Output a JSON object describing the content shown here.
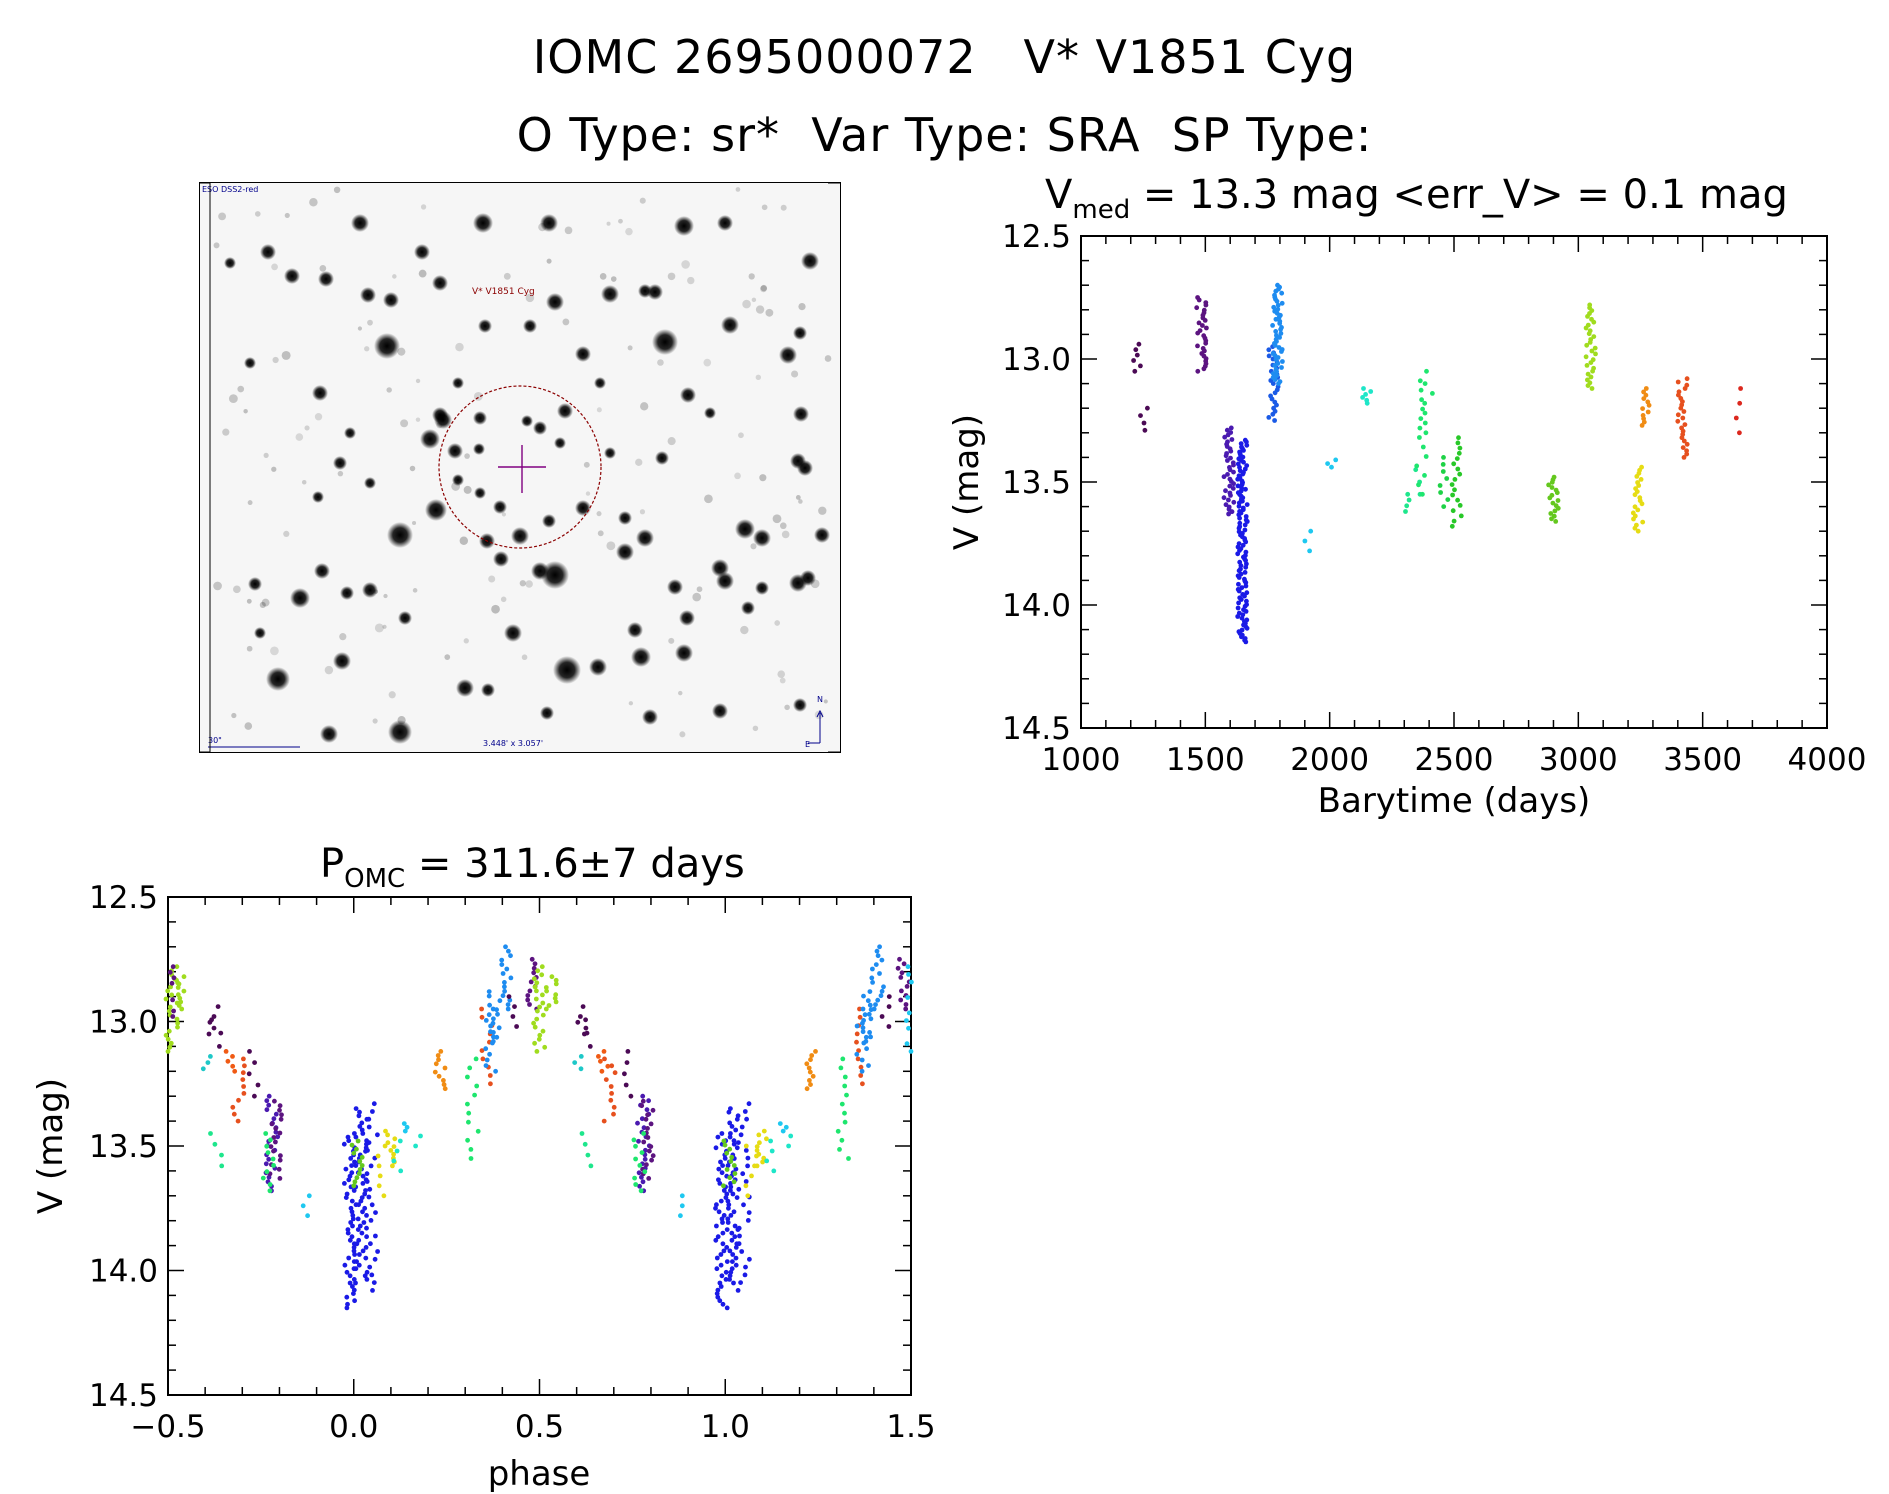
{
  "header": {
    "line1": "IOMC 2695000072   V* V1851 Cyg",
    "line2": "O Type: sr*  Var Type: SRA  SP Type:"
  },
  "image_panel": {
    "survey_label": "ESO DSS2-red",
    "object_label": "V* V1851 Cyg",
    "scale_label": "30\"",
    "fov_label": "3.448' x 3.057'",
    "north_label": "N",
    "east_label": "E",
    "colors": {
      "marker": "#8b0000",
      "cross": "#800080",
      "annotation": "#00008b"
    }
  },
  "chart_data": [
    {
      "id": "lightcurve",
      "type": "scatter",
      "title_main": "V",
      "title_sub": "med",
      "title_rest": " = 13.3 mag <err_V> = 0.1 mag",
      "xlabel": "Barytime (days)",
      "ylabel": "V (mag)",
      "xlim": [
        1000,
        4000
      ],
      "ylim": [
        12.5,
        14.5
      ],
      "y_inverted": true,
      "xticks": [
        1000,
        1500,
        2000,
        2500,
        3000,
        3500,
        4000
      ],
      "yticks": [
        "12.5",
        "13.0",
        "13.5",
        "14.0",
        "14.5"
      ],
      "groups": [
        {
          "x": 1225,
          "ymin": 12.94,
          "ymax": 13.05,
          "n": 6,
          "color": "#4b0a55"
        },
        {
          "x": 1250,
          "ymin": 13.2,
          "ymax": 13.29,
          "n": 4,
          "color": "#4b0a55"
        },
        {
          "x": 1485,
          "ymin": 12.75,
          "ymax": 13.05,
          "n": 30,
          "color": "#5c1480"
        },
        {
          "x": 1595,
          "ymin": 13.28,
          "ymax": 13.63,
          "n": 38,
          "color": "#4a1ab0"
        },
        {
          "x": 1650,
          "ymin": 13.33,
          "ymax": 14.15,
          "n": 120,
          "color": "#1a1ae6"
        },
        {
          "x": 1775,
          "ymin": 12.95,
          "ymax": 13.25,
          "n": 25,
          "color": "#1a5ae6"
        },
        {
          "x": 1790,
          "ymin": 12.7,
          "ymax": 13.1,
          "n": 50,
          "color": "#1e8cf0"
        },
        {
          "x": 1920,
          "ymin": 13.7,
          "ymax": 13.78,
          "n": 3,
          "color": "#1ec8f0"
        },
        {
          "x": 2010,
          "ymin": 13.41,
          "ymax": 13.44,
          "n": 3,
          "color": "#1ec8f0"
        },
        {
          "x": 2150,
          "ymin": 13.12,
          "ymax": 13.18,
          "n": 6,
          "color": "#1ee6c8"
        },
        {
          "x": 2320,
          "ymin": 13.55,
          "ymax": 13.62,
          "n": 4,
          "color": "#1ee68c"
        },
        {
          "x": 2350,
          "ymin": 13.45,
          "ymax": 13.55,
          "n": 3,
          "color": "#1ee68c"
        },
        {
          "x": 2370,
          "ymin": 13.05,
          "ymax": 13.55,
          "n": 14,
          "color": "#1ee66e"
        },
        {
          "x": 2395,
          "ymin": 13.1,
          "ymax": 13.3,
          "n": 6,
          "color": "#1ee66e"
        },
        {
          "x": 2460,
          "ymin": 13.4,
          "ymax": 13.6,
          "n": 8,
          "color": "#1ed246"
        },
        {
          "x": 2510,
          "ymin": 13.32,
          "ymax": 13.68,
          "n": 18,
          "color": "#28c828"
        },
        {
          "x": 2900,
          "ymin": 13.48,
          "ymax": 13.66,
          "n": 18,
          "color": "#64c81e"
        },
        {
          "x": 3050,
          "ymin": 12.78,
          "ymax": 13.12,
          "n": 30,
          "color": "#a0dc1e"
        },
        {
          "x": 3240,
          "ymin": 13.44,
          "ymax": 13.7,
          "n": 22,
          "color": "#e6dc14"
        },
        {
          "x": 3270,
          "ymin": 13.12,
          "ymax": 13.27,
          "n": 12,
          "color": "#f08c14"
        },
        {
          "x": 3420,
          "ymin": 13.08,
          "ymax": 13.4,
          "n": 25,
          "color": "#e6501e"
        },
        {
          "x": 3640,
          "ymin": 13.12,
          "ymax": 13.3,
          "n": 4,
          "color": "#dc281e"
        }
      ]
    },
    {
      "id": "phased",
      "type": "scatter",
      "title_main": "P",
      "title_sub": "OMC",
      "title_rest": " = 311.6±7 days",
      "xlabel": "phase",
      "ylabel": "V (mag)",
      "xlim": [
        -0.5,
        1.5
      ],
      "ylim": [
        12.5,
        14.5
      ],
      "y_inverted": true,
      "xticks": [
        "−0.5",
        "0.0",
        "0.5",
        "1.0",
        "1.5"
      ],
      "yticks": [
        "12.5",
        "13.0",
        "13.5",
        "14.0",
        "14.5"
      ],
      "groups": [
        {
          "x": -0.49,
          "ymin": 12.78,
          "ymax": 13.12,
          "n": 22,
          "color": "#a0dc1e"
        },
        {
          "x": -0.47,
          "ymin": 12.82,
          "ymax": 12.95,
          "n": 10,
          "color": "#a0dc1e"
        },
        {
          "x": -0.5,
          "ymin": 12.78,
          "ymax": 12.98,
          "n": 10,
          "color": "#5c1480"
        },
        {
          "x": -0.39,
          "ymin": 12.98,
          "ymax": 13.05,
          "n": 4,
          "color": "#4b0a55"
        },
        {
          "x": -0.37,
          "ymin": 12.94,
          "ymax": 13.1,
          "n": 4,
          "color": "#4b0a55"
        },
        {
          "x": -0.39,
          "ymin": 13.14,
          "ymax": 13.19,
          "n": 3,
          "color": "#1ec8c8"
        },
        {
          "x": -0.37,
          "ymin": 13.45,
          "ymax": 13.58,
          "n": 4,
          "color": "#1ee68c"
        },
        {
          "x": -0.33,
          "ymin": 13.12,
          "ymax": 13.2,
          "n": 5,
          "color": "#f05a14"
        },
        {
          "x": -0.31,
          "ymin": 13.15,
          "ymax": 13.4,
          "n": 10,
          "color": "#e6501e"
        },
        {
          "x": -0.27,
          "ymin": 13.12,
          "ymax": 13.3,
          "n": 5,
          "color": "#4b0a55"
        },
        {
          "x": -0.22,
          "ymin": 13.3,
          "ymax": 13.68,
          "n": 22,
          "color": "#4a1ab0"
        },
        {
          "x": -0.21,
          "ymin": 13.32,
          "ymax": 13.63,
          "n": 18,
          "color": "#5c1480"
        },
        {
          "x": -0.23,
          "ymin": 13.45,
          "ymax": 13.68,
          "n": 10,
          "color": "#1ee66e"
        },
        {
          "x": -0.13,
          "ymin": 13.7,
          "ymax": 13.78,
          "n": 3,
          "color": "#1ec8f0"
        },
        {
          "x": -0.01,
          "ymin": 13.45,
          "ymax": 14.15,
          "n": 50,
          "color": "#1a1ae6"
        },
        {
          "x": 0.02,
          "ymin": 13.35,
          "ymax": 14.05,
          "n": 50,
          "color": "#1a1ae6"
        },
        {
          "x": 0.05,
          "ymin": 13.33,
          "ymax": 14.08,
          "n": 25,
          "color": "#1a1ae6"
        },
        {
          "x": 0.01,
          "ymin": 13.48,
          "ymax": 13.66,
          "n": 12,
          "color": "#64c81e"
        },
        {
          "x": 0.07,
          "ymin": 13.5,
          "ymax": 13.7,
          "n": 6,
          "color": "#e6dc14"
        },
        {
          "x": 0.1,
          "ymin": 13.44,
          "ymax": 13.58,
          "n": 10,
          "color": "#e6dc14"
        },
        {
          "x": 0.12,
          "ymin": 13.48,
          "ymax": 13.6,
          "n": 4,
          "color": "#1ee6c8"
        },
        {
          "x": 0.15,
          "ymin": 13.41,
          "ymax": 13.44,
          "n": 3,
          "color": "#1ec8f0"
        },
        {
          "x": 0.18,
          "ymin": 13.46,
          "ymax": 13.5,
          "n": 2,
          "color": "#1ee6c8"
        },
        {
          "x": 0.23,
          "ymin": 13.12,
          "ymax": 13.27,
          "n": 10,
          "color": "#f08c14"
        },
        {
          "x": 0.32,
          "ymin": 13.15,
          "ymax": 13.55,
          "n": 12,
          "color": "#1ee66e"
        },
        {
          "x": 0.36,
          "ymin": 12.95,
          "ymax": 13.25,
          "n": 10,
          "color": "#e6501e"
        },
        {
          "x": 0.37,
          "ymin": 12.95,
          "ymax": 13.2,
          "n": 12,
          "color": "#1e8cf0"
        },
        {
          "x": 0.38,
          "ymin": 12.88,
          "ymax": 13.08,
          "n": 12,
          "color": "#1e8cf0"
        },
        {
          "x": 0.41,
          "ymin": 12.7,
          "ymax": 12.95,
          "n": 15,
          "color": "#1e8cf0"
        },
        {
          "x": 0.43,
          "ymin": 12.9,
          "ymax": 13.02,
          "n": 4,
          "color": "#4b0a55"
        },
        {
          "x": 0.48,
          "ymin": 12.75,
          "ymax": 12.95,
          "n": 12,
          "color": "#5c1480"
        },
        {
          "x": 0.5,
          "ymin": 12.78,
          "ymax": 13.12,
          "n": 22,
          "color": "#a0dc1e"
        },
        {
          "x": 0.53,
          "ymin": 12.82,
          "ymax": 12.95,
          "n": 10,
          "color": "#a0dc1e"
        },
        {
          "x": 0.61,
          "ymin": 12.98,
          "ymax": 13.05,
          "n": 4,
          "color": "#4b0a55"
        },
        {
          "x": 0.63,
          "ymin": 12.94,
          "ymax": 13.1,
          "n": 4,
          "color": "#4b0a55"
        },
        {
          "x": 0.61,
          "ymin": 13.14,
          "ymax": 13.19,
          "n": 3,
          "color": "#1ec8c8"
        },
        {
          "x": 0.63,
          "ymin": 13.45,
          "ymax": 13.58,
          "n": 4,
          "color": "#1ee68c"
        },
        {
          "x": 0.67,
          "ymin": 13.12,
          "ymax": 13.2,
          "n": 5,
          "color": "#f05a14"
        },
        {
          "x": 0.69,
          "ymin": 13.15,
          "ymax": 13.4,
          "n": 10,
          "color": "#e6501e"
        },
        {
          "x": 0.73,
          "ymin": 13.12,
          "ymax": 13.3,
          "n": 5,
          "color": "#4b0a55"
        },
        {
          "x": 0.78,
          "ymin": 13.3,
          "ymax": 13.68,
          "n": 22,
          "color": "#4a1ab0"
        },
        {
          "x": 0.79,
          "ymin": 13.32,
          "ymax": 13.63,
          "n": 18,
          "color": "#5c1480"
        },
        {
          "x": 0.77,
          "ymin": 13.45,
          "ymax": 13.68,
          "n": 10,
          "color": "#1ee66e"
        },
        {
          "x": 0.87,
          "ymin": 13.7,
          "ymax": 13.78,
          "n": 3,
          "color": "#1ec8f0"
        },
        {
          "x": 0.99,
          "ymin": 13.45,
          "ymax": 14.15,
          "n": 50,
          "color": "#1a1ae6"
        },
        {
          "x": 1.02,
          "ymin": 13.35,
          "ymax": 14.05,
          "n": 50,
          "color": "#1a1ae6"
        },
        {
          "x": 1.05,
          "ymin": 13.33,
          "ymax": 14.08,
          "n": 25,
          "color": "#1a1ae6"
        },
        {
          "x": 1.01,
          "ymin": 13.48,
          "ymax": 13.66,
          "n": 12,
          "color": "#64c81e"
        },
        {
          "x": 1.07,
          "ymin": 13.5,
          "ymax": 13.7,
          "n": 6,
          "color": "#e6dc14"
        },
        {
          "x": 1.1,
          "ymin": 13.44,
          "ymax": 13.58,
          "n": 10,
          "color": "#e6dc14"
        },
        {
          "x": 1.12,
          "ymin": 13.48,
          "ymax": 13.6,
          "n": 4,
          "color": "#1ee6c8"
        },
        {
          "x": 1.15,
          "ymin": 13.41,
          "ymax": 13.44,
          "n": 3,
          "color": "#1ec8f0"
        },
        {
          "x": 1.18,
          "ymin": 13.46,
          "ymax": 13.5,
          "n": 2,
          "color": "#1ee6c8"
        },
        {
          "x": 1.23,
          "ymin": 13.12,
          "ymax": 13.27,
          "n": 10,
          "color": "#f08c14"
        },
        {
          "x": 1.32,
          "ymin": 13.15,
          "ymax": 13.55,
          "n": 12,
          "color": "#1ee66e"
        },
        {
          "x": 1.36,
          "ymin": 12.95,
          "ymax": 13.25,
          "n": 10,
          "color": "#e6501e"
        },
        {
          "x": 1.37,
          "ymin": 12.95,
          "ymax": 13.2,
          "n": 12,
          "color": "#1e8cf0"
        },
        {
          "x": 1.38,
          "ymin": 12.88,
          "ymax": 13.08,
          "n": 12,
          "color": "#1e8cf0"
        },
        {
          "x": 1.41,
          "ymin": 12.7,
          "ymax": 12.95,
          "n": 15,
          "color": "#1e8cf0"
        },
        {
          "x": 1.43,
          "ymin": 12.9,
          "ymax": 13.02,
          "n": 4,
          "color": "#4b0a55"
        },
        {
          "x": 1.48,
          "ymin": 12.75,
          "ymax": 12.95,
          "n": 12,
          "color": "#5c1480"
        },
        {
          "x": 1.5,
          "ymin": 12.78,
          "ymax": 13.12,
          "n": 12,
          "color": "#1ec8f0"
        }
      ]
    }
  ]
}
